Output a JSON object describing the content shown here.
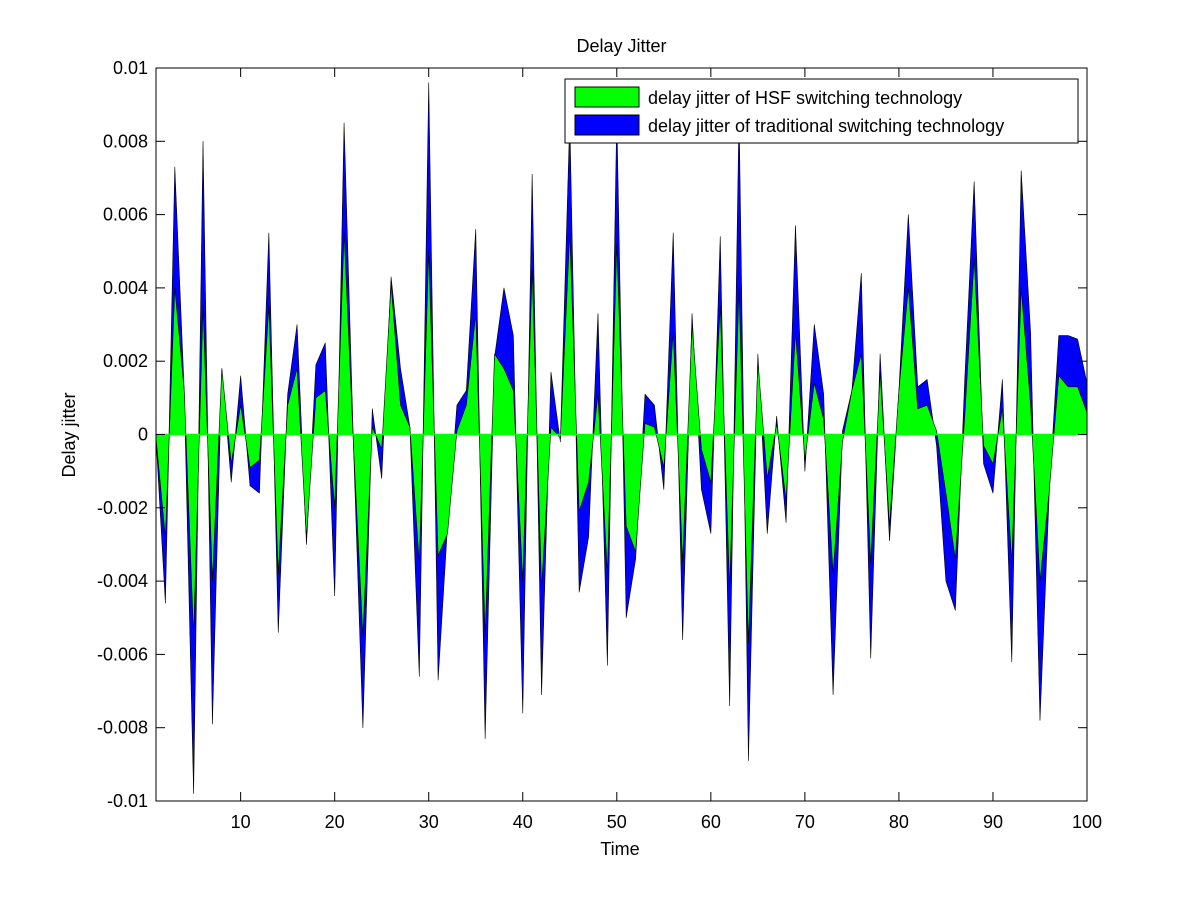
{
  "chart_data": {
    "type": "area",
    "title": "Delay Jitter",
    "xlabel": "Time",
    "ylabel": "Delay jitter",
    "xlim": [
      1,
      100
    ],
    "ylim": [
      -0.01,
      0.01
    ],
    "xticks": [
      10,
      20,
      30,
      40,
      50,
      60,
      70,
      80,
      90,
      100
    ],
    "xtick_labels": [
      "10",
      "20",
      "30",
      "40",
      "50",
      "60",
      "70",
      "80",
      "90",
      "100"
    ],
    "yticks": [
      -0.01,
      -0.008,
      -0.006,
      -0.004,
      -0.002,
      0,
      0.002,
      0.004,
      0.006,
      0.008,
      0.01
    ],
    "ytick_labels": [
      "-0.01",
      "-0.008",
      "-0.006",
      "-0.004",
      "-0.002",
      "0",
      "0.002",
      "0.004",
      "0.006",
      "0.008",
      "0.01"
    ],
    "legend_position": "top-right",
    "x": [
      1,
      2,
      3,
      4,
      5,
      6,
      7,
      8,
      9,
      10,
      11,
      12,
      13,
      14,
      15,
      16,
      17,
      18,
      19,
      20,
      21,
      22,
      23,
      24,
      25,
      26,
      27,
      28,
      29,
      30,
      31,
      32,
      33,
      34,
      35,
      36,
      37,
      38,
      39,
      40,
      41,
      42,
      43,
      44,
      45,
      46,
      47,
      48,
      49,
      50,
      51,
      52,
      53,
      54,
      55,
      56,
      57,
      58,
      59,
      60,
      61,
      62,
      63,
      64,
      65,
      66,
      67,
      68,
      69,
      70,
      71,
      72,
      73,
      74,
      75,
      76,
      77,
      78,
      79,
      80,
      81,
      82,
      83,
      84,
      85,
      86,
      87,
      88,
      89,
      90,
      91,
      92,
      93,
      94,
      95,
      96,
      97,
      98,
      99,
      100
    ],
    "series": [
      {
        "name": "delay jitter of traditional switching technology",
        "color": "#0000ff",
        "values": [
          -0.0001,
          -0.0046,
          0.0073,
          0.0012,
          -0.0098,
          0.008,
          -0.0079,
          0.0018,
          -0.0013,
          0.0016,
          -0.0014,
          -0.0016,
          0.0055,
          -0.0054,
          0.0011,
          0.003,
          -0.003,
          0.0019,
          0.0025,
          -0.0044,
          0.0085,
          -0.0003,
          -0.008,
          0.0007,
          -0.0012,
          0.0043,
          0.0018,
          0.0002,
          -0.0066,
          0.0096,
          -0.0067,
          -0.0025,
          0.0008,
          0.0012,
          0.0056,
          -0.0083,
          0.0021,
          0.004,
          0.0027,
          -0.0076,
          0.0071,
          -0.0071,
          0.0017,
          -0.0002,
          0.0086,
          -0.0043,
          -0.0028,
          0.0033,
          -0.0063,
          0.0087,
          -0.005,
          -0.0034,
          0.0011,
          0.0008,
          -0.0015,
          0.0055,
          -0.0056,
          0.0033,
          -0.0015,
          -0.0027,
          0.0054,
          -0.0074,
          0.0088,
          -0.0089,
          0.0022,
          -0.0027,
          0.0005,
          -0.0024,
          0.0057,
          -0.001,
          0.003,
          0.0011,
          -0.0071,
          0.0001,
          0.0012,
          0.0044,
          -0.0061,
          0.0022,
          -0.0029,
          0.0012,
          0.006,
          0.0013,
          0.0015,
          -0.0003,
          -0.004,
          -0.0048,
          0.0015,
          0.0069,
          -0.0008,
          -0.0016,
          0.0015,
          -0.0062,
          0.0072,
          0.0028,
          -0.0078,
          -0.0015,
          0.0027,
          0.0027,
          0.0026,
          0.0014
        ]
      },
      {
        "name": "delay jitter of HSF switching technology",
        "color": "#00ff00",
        "values": [
          -0.0001,
          -0.0028,
          0.004,
          0.0012,
          -0.0055,
          0.0035,
          -0.004,
          0.0018,
          -0.0008,
          0.0008,
          -0.0009,
          -0.0007,
          0.0035,
          -0.0038,
          0.0008,
          0.0018,
          -0.0028,
          0.001,
          0.0012,
          -0.002,
          0.0055,
          -0.0003,
          -0.0055,
          0.0002,
          -0.0004,
          0.0041,
          0.0008,
          0.0002,
          -0.0035,
          0.005,
          -0.0033,
          -0.0027,
          0.0001,
          0.0008,
          0.0033,
          -0.0055,
          0.0022,
          0.0018,
          0.0012,
          -0.004,
          0.0045,
          -0.0042,
          0.0002,
          -0.0001,
          0.0055,
          -0.0021,
          -0.0013,
          0.0011,
          -0.0038,
          0.0052,
          -0.0025,
          -0.0032,
          0.0003,
          0.0002,
          -0.0009,
          0.0028,
          -0.0035,
          0.003,
          -0.0004,
          -0.0013,
          0.0035,
          -0.0042,
          0.004,
          -0.0057,
          0.002,
          -0.0012,
          0.0003,
          -0.0018,
          0.0028,
          -0.0007,
          0.0014,
          0.0004,
          -0.0038,
          -0.0002,
          0.0012,
          0.0022,
          -0.0035,
          0.0017,
          -0.0025,
          0.0012,
          0.004,
          0.0007,
          0.0008,
          0.0001,
          -0.0016,
          -0.0034,
          0.0005,
          0.0048,
          -0.0003,
          -0.0008,
          0.0007,
          -0.0035,
          0.004,
          0.0008,
          -0.004,
          -0.0015,
          0.0016,
          0.0013,
          0.0013,
          0.0006
        ]
      }
    ]
  }
}
